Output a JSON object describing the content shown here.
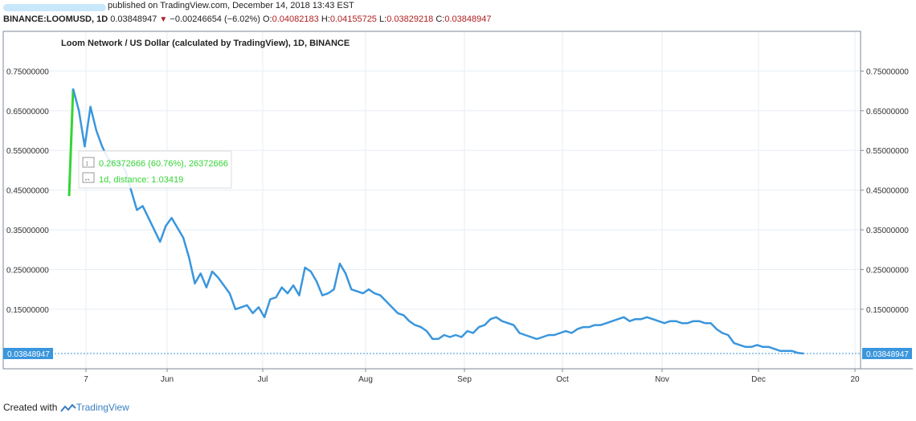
{
  "header": {
    "published": "published on TradingView.com, December 14, 2018 13:43 EST",
    "symbol": "BINANCE:LOOMUSD, 1D",
    "last": "0.03848947",
    "change": "−0.00246654 (−6.02%)",
    "o_label": "O:",
    "o_value": "0.04082183",
    "h_label": "H:",
    "h_value": "0.04155725",
    "l_label": "L:",
    "l_value": "0.03829218",
    "c_label": "C:",
    "c_value": "0.03848947"
  },
  "legend": "Loom Network / US Dollar (calculated by TradingView), 1D, BINANCE",
  "measure": {
    "line1": "0.26372666 (60.76%), 26372666",
    "line2": "1d, distance: 1.03419"
  },
  "price_badge": "0.03848947",
  "footer": {
    "created": "Created with",
    "brand": "TradingView"
  },
  "colors": {
    "series": "#3a96dd",
    "measure": "#35d435",
    "badge": "#3a96dd",
    "grid": "#e6eef4"
  },
  "chart_data": {
    "type": "line",
    "title": "Loom Network / US Dollar (calculated by TradingView), 1D, BINANCE",
    "x_ticks": [
      "7",
      "Jun",
      "Jul",
      "Aug",
      "Sep",
      "Oct",
      "Nov",
      "Dec",
      "20"
    ],
    "y_ticks": [
      0.75,
      0.65,
      0.55,
      0.45,
      0.35,
      0.25,
      0.15
    ],
    "y_tick_labels": [
      "0.75000000",
      "0.65000000",
      "0.55000000",
      "0.45000000",
      "0.35000000",
      "0.25000000",
      "0.15000000"
    ],
    "ylim": [
      0.0,
      0.85
    ],
    "grid": true,
    "series": [
      {
        "values": [
          0.705,
          0.65,
          0.56,
          0.66,
          0.6,
          0.56,
          0.53,
          0.52,
          0.52,
          0.5,
          0.45,
          0.4,
          0.41,
          0.38,
          0.35,
          0.32,
          0.36,
          0.38,
          0.355,
          0.33,
          0.28,
          0.215,
          0.24,
          0.205,
          0.245,
          0.23,
          0.21,
          0.19,
          0.15,
          0.155,
          0.16,
          0.14,
          0.155,
          0.13,
          0.175,
          0.18,
          0.205,
          0.19,
          0.21,
          0.185,
          0.255,
          0.245,
          0.22,
          0.185,
          0.19,
          0.2,
          0.265,
          0.24,
          0.2,
          0.195,
          0.19,
          0.2,
          0.19,
          0.185,
          0.17,
          0.155,
          0.14,
          0.135,
          0.12,
          0.11,
          0.105,
          0.095,
          0.075,
          0.075,
          0.085,
          0.08,
          0.085,
          0.08,
          0.095,
          0.09,
          0.105,
          0.11,
          0.125,
          0.13,
          0.12,
          0.115,
          0.11,
          0.09,
          0.085,
          0.08,
          0.075,
          0.08,
          0.085,
          0.085,
          0.09,
          0.095,
          0.09,
          0.1,
          0.105,
          0.105,
          0.11,
          0.11,
          0.115,
          0.12,
          0.125,
          0.13,
          0.12,
          0.125,
          0.125,
          0.13,
          0.125,
          0.12,
          0.115,
          0.12,
          0.12,
          0.115,
          0.115,
          0.12,
          0.12,
          0.115,
          0.115,
          0.1,
          0.09,
          0.085,
          0.065,
          0.06,
          0.055,
          0.055,
          0.06,
          0.055,
          0.055,
          0.05,
          0.045,
          0.045,
          0.045,
          0.04,
          0.0385
        ]
      }
    ],
    "measure_segment": {
      "from": 0.435,
      "to": 0.705
    },
    "last_price": 0.03848947
  }
}
